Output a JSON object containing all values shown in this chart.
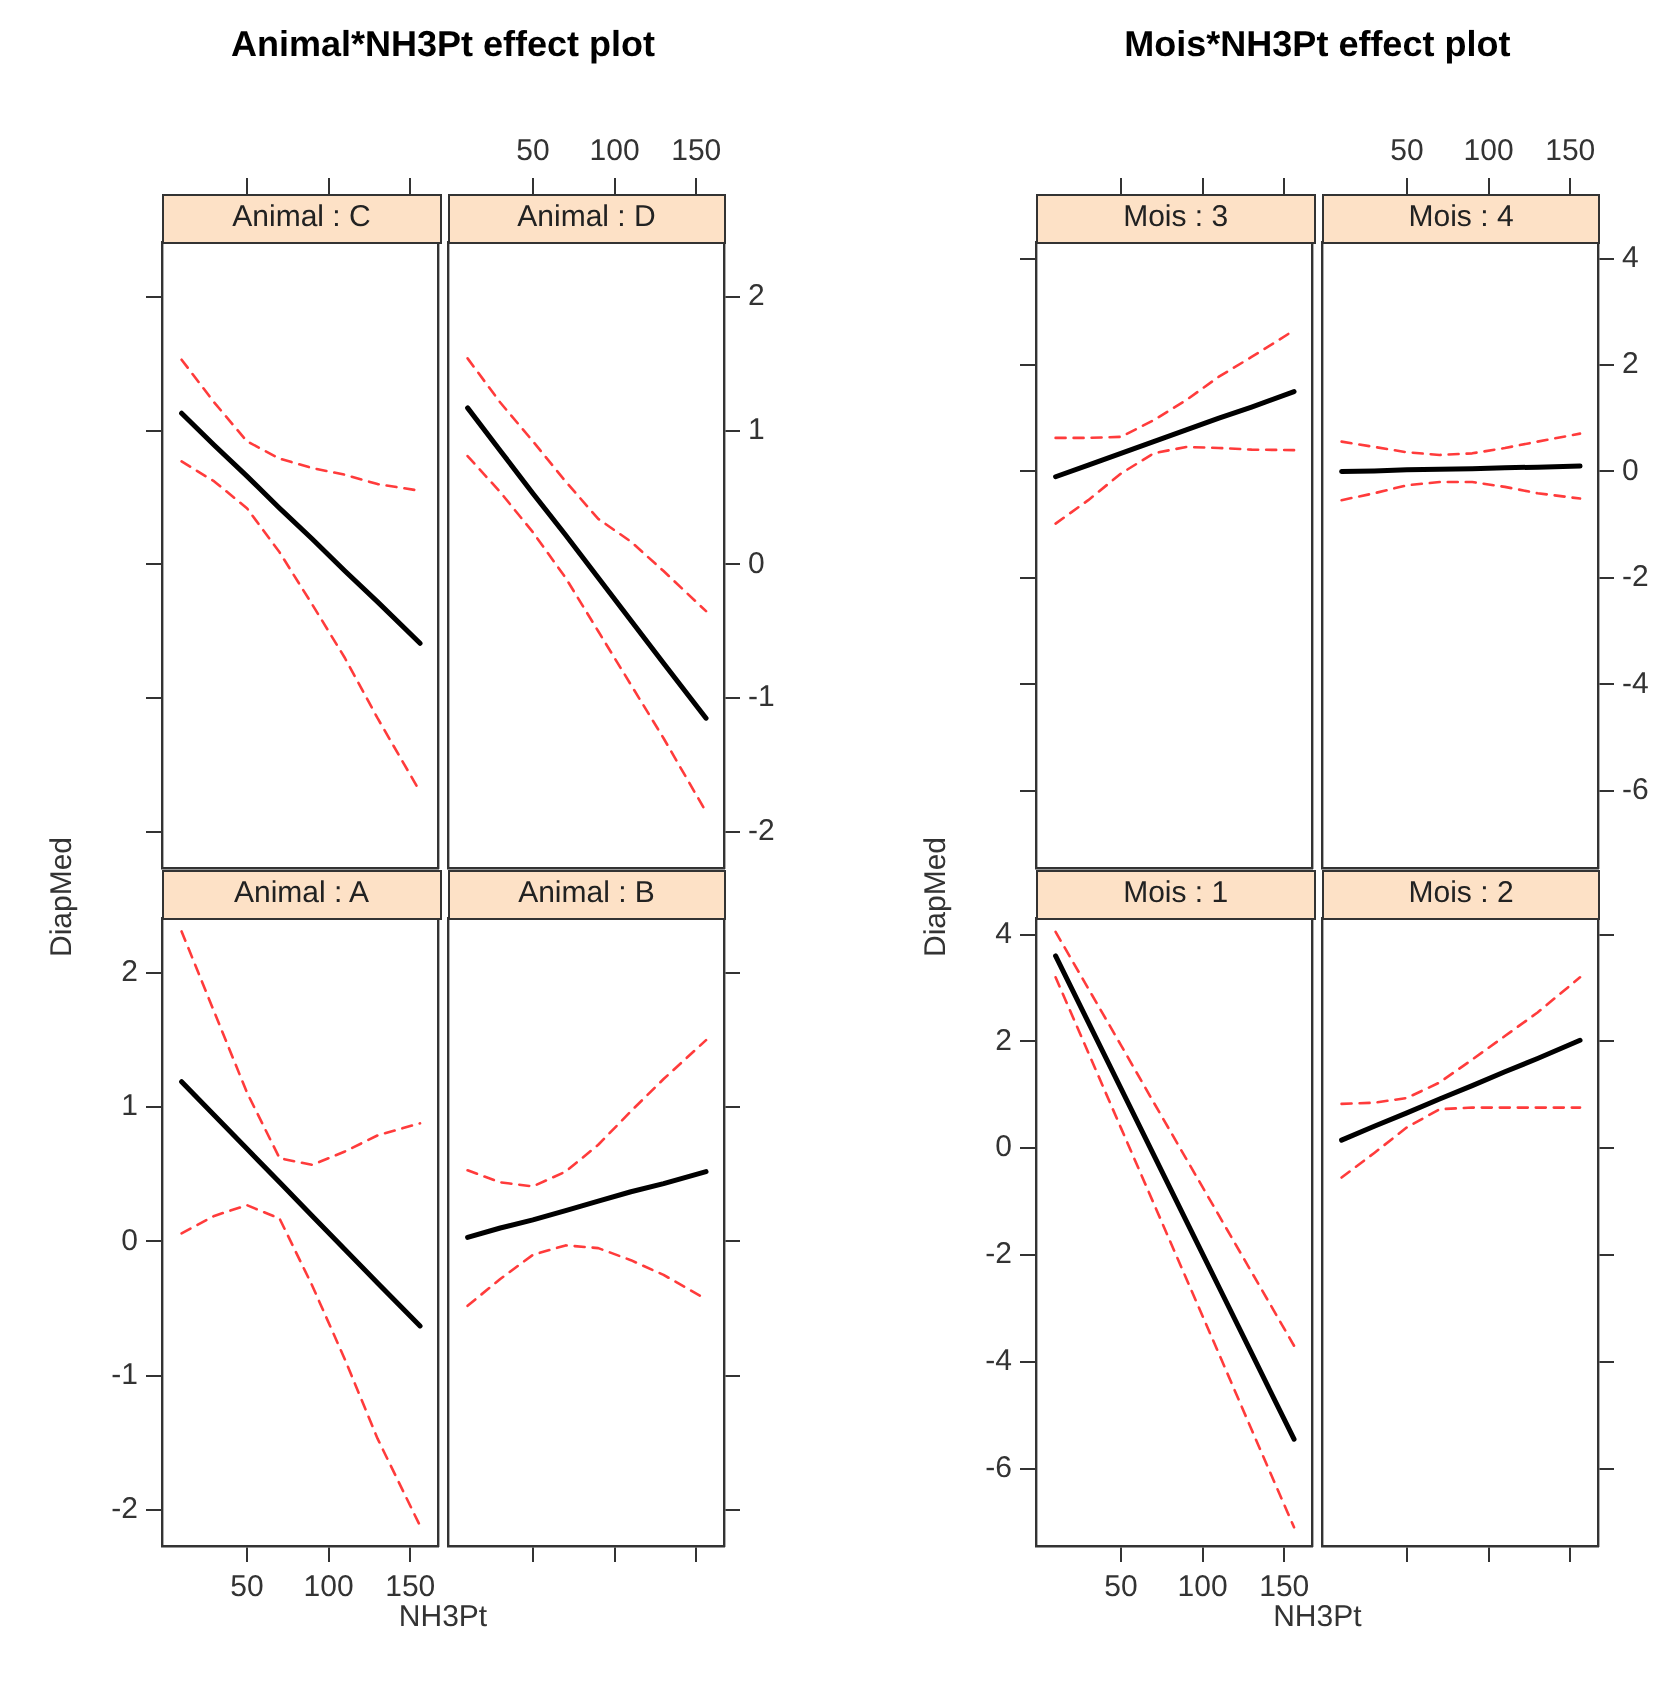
{
  "chart_data": [
    {
      "type": "line",
      "title": "Animal : C",
      "annotations": [
        "Animal*NH3Pt effect plot"
      ],
      "x": [
        10,
        30,
        50,
        70,
        90,
        110,
        130,
        156
      ],
      "xlim": [
        -2,
        167
      ],
      "xticks": [
        50,
        100,
        150
      ],
      "ylim": [
        -2.27,
        2.41
      ],
      "yticks": [
        -2,
        -1,
        0,
        1,
        2
      ],
      "tick_labels": false,
      "grid": false,
      "legend": false,
      "series": [
        {
          "color": "#000000",
          "line_style": "solid",
          "values": [
            1.13,
            0.89,
            0.66,
            0.42,
            0.19,
            -0.05,
            -0.28,
            -0.59
          ]
        },
        {
          "color": "#ff3b3b",
          "line_style": "dashed",
          "values": [
            1.53,
            1.21,
            0.92,
            0.79,
            0.72,
            0.67,
            0.6,
            0.55
          ]
        },
        {
          "color": "#ff3b3b",
          "line_style": "dashed",
          "values": [
            0.77,
            0.62,
            0.42,
            0.09,
            -0.3,
            -0.7,
            -1.15,
            -1.7
          ]
        }
      ]
    },
    {
      "type": "line",
      "title": "Animal : D",
      "x": [
        10,
        30,
        50,
        70,
        90,
        110,
        130,
        156
      ],
      "xlim": [
        -2,
        167
      ],
      "xticks": [
        50,
        100,
        150
      ],
      "y2lim": [
        -2.27,
        2.41
      ],
      "y2ticks": [
        -2,
        -1,
        0,
        1,
        2
      ],
      "grid": false,
      "legend": false,
      "series": [
        {
          "color": "#000000",
          "line_style": "solid",
          "axis": "y2",
          "values": [
            1.17,
            0.85,
            0.53,
            0.22,
            -0.1,
            -0.42,
            -0.74,
            -1.15
          ]
        },
        {
          "color": "#ff3b3b",
          "line_style": "dashed",
          "axis": "y2",
          "values": [
            1.54,
            1.21,
            0.92,
            0.62,
            0.34,
            0.17,
            -0.05,
            -0.35
          ]
        },
        {
          "color": "#ff3b3b",
          "line_style": "dashed",
          "axis": "y2",
          "values": [
            0.81,
            0.54,
            0.24,
            -0.1,
            -0.5,
            -0.9,
            -1.3,
            -1.85
          ]
        }
      ]
    },
    {
      "type": "line",
      "title": "Animal : A",
      "xlabel": "NH3Pt",
      "ylabel": "DiapMed",
      "x": [
        10,
        30,
        50,
        70,
        90,
        110,
        130,
        156
      ],
      "xlim": [
        -2,
        167
      ],
      "xticks": [
        50,
        100,
        150
      ],
      "ylim": [
        -2.27,
        2.41
      ],
      "yticks": [
        -2,
        -1,
        0,
        1,
        2
      ],
      "grid": false,
      "legend": false,
      "series": [
        {
          "color": "#000000",
          "line_style": "solid",
          "values": [
            1.19,
            0.94,
            0.69,
            0.44,
            0.19,
            -0.06,
            -0.31,
            -0.63
          ]
        },
        {
          "color": "#ff3b3b",
          "line_style": "dashed",
          "values": [
            2.31,
            1.71,
            1.11,
            0.62,
            0.57,
            0.67,
            0.79,
            0.88
          ]
        },
        {
          "color": "#ff3b3b",
          "line_style": "dashed",
          "values": [
            0.06,
            0.19,
            0.27,
            0.17,
            -0.33,
            -0.88,
            -1.47,
            -2.12
          ]
        }
      ]
    },
    {
      "type": "line",
      "title": "Animal : B",
      "x": [
        10,
        30,
        50,
        70,
        90,
        110,
        130,
        156
      ],
      "xlim": [
        -2,
        167
      ],
      "xticks": [
        50,
        100,
        150
      ],
      "y2lim": [
        -2.27,
        2.41
      ],
      "y2ticks": [
        -2,
        -1,
        0,
        1,
        2
      ],
      "tick_labels": false,
      "grid": false,
      "legend": false,
      "series": [
        {
          "color": "#000000",
          "line_style": "solid",
          "axis": "y2",
          "values": [
            0.03,
            0.1,
            0.16,
            0.23,
            0.3,
            0.37,
            0.43,
            0.52
          ]
        },
        {
          "color": "#ff3b3b",
          "line_style": "dashed",
          "axis": "y2",
          "values": [
            0.53,
            0.44,
            0.41,
            0.52,
            0.72,
            0.97,
            1.21,
            1.5
          ]
        },
        {
          "color": "#ff3b3b",
          "line_style": "dashed",
          "axis": "y2",
          "values": [
            -0.48,
            -0.28,
            -0.1,
            -0.03,
            -0.05,
            -0.14,
            -0.25,
            -0.43
          ]
        }
      ]
    },
    {
      "type": "line",
      "title": "Mois : 3",
      "annotations": [
        "Mois*NH3Pt effect plot"
      ],
      "x": [
        10,
        30,
        50,
        70,
        90,
        110,
        130,
        156
      ],
      "xlim": [
        -2,
        167
      ],
      "xticks": [
        50,
        100,
        150
      ],
      "ylim": [
        -7.45,
        4.31
      ],
      "yticks": [
        -6,
        -4,
        -2,
        0,
        2,
        4
      ],
      "tick_labels": false,
      "grid": false,
      "legend": false,
      "series": [
        {
          "color": "#000000",
          "line_style": "solid",
          "values": [
            -0.1,
            0.12,
            0.34,
            0.56,
            0.78,
            1.0,
            1.21,
            1.5
          ]
        },
        {
          "color": "#ff3b3b",
          "line_style": "dashed",
          "values": [
            0.63,
            0.63,
            0.65,
            0.96,
            1.34,
            1.78,
            2.15,
            2.65
          ]
        },
        {
          "color": "#ff3b3b",
          "line_style": "dashed",
          "values": [
            -0.98,
            -0.54,
            -0.04,
            0.34,
            0.46,
            0.44,
            0.41,
            0.4
          ]
        }
      ]
    },
    {
      "type": "line",
      "title": "Mois : 4",
      "x": [
        10,
        30,
        50,
        70,
        90,
        110,
        130,
        156
      ],
      "xlim": [
        -2,
        167
      ],
      "xticks": [
        50,
        100,
        150
      ],
      "y2lim": [
        -7.45,
        4.31
      ],
      "y2ticks": [
        -6,
        -4,
        -2,
        0,
        2,
        4
      ],
      "grid": false,
      "legend": false,
      "series": [
        {
          "color": "#000000",
          "line_style": "solid",
          "axis": "y2",
          "values": [
            0.0,
            0.01,
            0.03,
            0.04,
            0.05,
            0.07,
            0.08,
            0.1
          ]
        },
        {
          "color": "#ff3b3b",
          "line_style": "dashed",
          "axis": "y2",
          "values": [
            0.56,
            0.46,
            0.36,
            0.31,
            0.34,
            0.44,
            0.56,
            0.71
          ]
        },
        {
          "color": "#ff3b3b",
          "line_style": "dashed",
          "axis": "y2",
          "values": [
            -0.54,
            -0.41,
            -0.26,
            -0.2,
            -0.2,
            -0.29,
            -0.41,
            -0.51
          ]
        }
      ]
    },
    {
      "type": "line",
      "title": "Mois : 1",
      "xlabel": "NH3Pt",
      "ylabel": "DiapMed",
      "x": [
        10,
        30,
        50,
        70,
        90,
        110,
        130,
        156
      ],
      "xlim": [
        -2,
        167
      ],
      "xticks": [
        50,
        100,
        150
      ],
      "ylim": [
        -7.45,
        4.31
      ],
      "yticks": [
        -6,
        -4,
        -2,
        0,
        2,
        4
      ],
      "grid": false,
      "legend": false,
      "series": [
        {
          "color": "#000000",
          "line_style": "solid",
          "values": [
            3.6,
            2.36,
            1.12,
            -0.12,
            -1.36,
            -2.6,
            -3.84,
            -5.45
          ]
        },
        {
          "color": "#ff3b3b",
          "line_style": "dashed",
          "values": [
            4.05,
            2.99,
            1.93,
            0.86,
            -0.2,
            -1.26,
            -2.32,
            -3.7
          ]
        },
        {
          "color": "#ff3b3b",
          "line_style": "dashed",
          "values": [
            3.2,
            1.79,
            0.38,
            -1.03,
            -2.44,
            -3.85,
            -5.27,
            -7.1
          ]
        }
      ]
    },
    {
      "type": "line",
      "title": "Mois : 2",
      "x": [
        10,
        30,
        50,
        70,
        90,
        110,
        130,
        156
      ],
      "xlim": [
        -2,
        167
      ],
      "xticks": [
        50,
        100,
        150
      ],
      "y2lim": [
        -7.45,
        4.31
      ],
      "y2ticks": [
        -6,
        -4,
        -2,
        0,
        2,
        4
      ],
      "tick_labels": false,
      "grid": false,
      "legend": false,
      "series": [
        {
          "color": "#000000",
          "line_style": "solid",
          "axis": "y2",
          "values": [
            0.15,
            0.41,
            0.66,
            0.92,
            1.17,
            1.43,
            1.68,
            2.02
          ]
        },
        {
          "color": "#ff3b3b",
          "line_style": "dashed",
          "axis": "y2",
          "values": [
            0.83,
            0.85,
            0.94,
            1.23,
            1.66,
            2.1,
            2.54,
            3.2
          ]
        },
        {
          "color": "#ff3b3b",
          "line_style": "dashed",
          "axis": "y2",
          "values": [
            -0.55,
            -0.09,
            0.39,
            0.73,
            0.76,
            0.76,
            0.76,
            0.76
          ]
        }
      ]
    }
  ]
}
